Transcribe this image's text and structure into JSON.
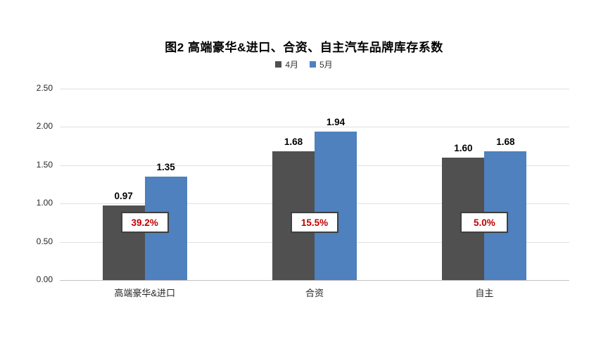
{
  "chart_data": {
    "type": "bar",
    "title": "图2  高端豪华&进口、合资、自主汽车品牌库存系数",
    "categories": [
      "高端豪华&进口",
      "合资",
      "自主"
    ],
    "series": [
      {
        "name": "4月",
        "color": "#505050",
        "values": [
          0.97,
          1.68,
          1.6
        ]
      },
      {
        "name": "5月",
        "color": "#4e81bd",
        "values": [
          1.35,
          1.94,
          1.68
        ]
      }
    ],
    "change_labels": [
      "39.2%",
      "15.5%",
      "5.0%"
    ],
    "y_ticks": [
      "2.50",
      "2.00",
      "1.50",
      "1.00",
      "0.50",
      "0.00"
    ],
    "ylim": [
      0,
      2.5
    ],
    "grid": true,
    "legend_position": "top",
    "xlabel": "",
    "ylabel": "",
    "colors": {
      "percent_text": "#c00000",
      "percent_border": "#3f3f3f",
      "gridline": "#e0e0e0",
      "axis_line": "#c2c2c2"
    }
  }
}
